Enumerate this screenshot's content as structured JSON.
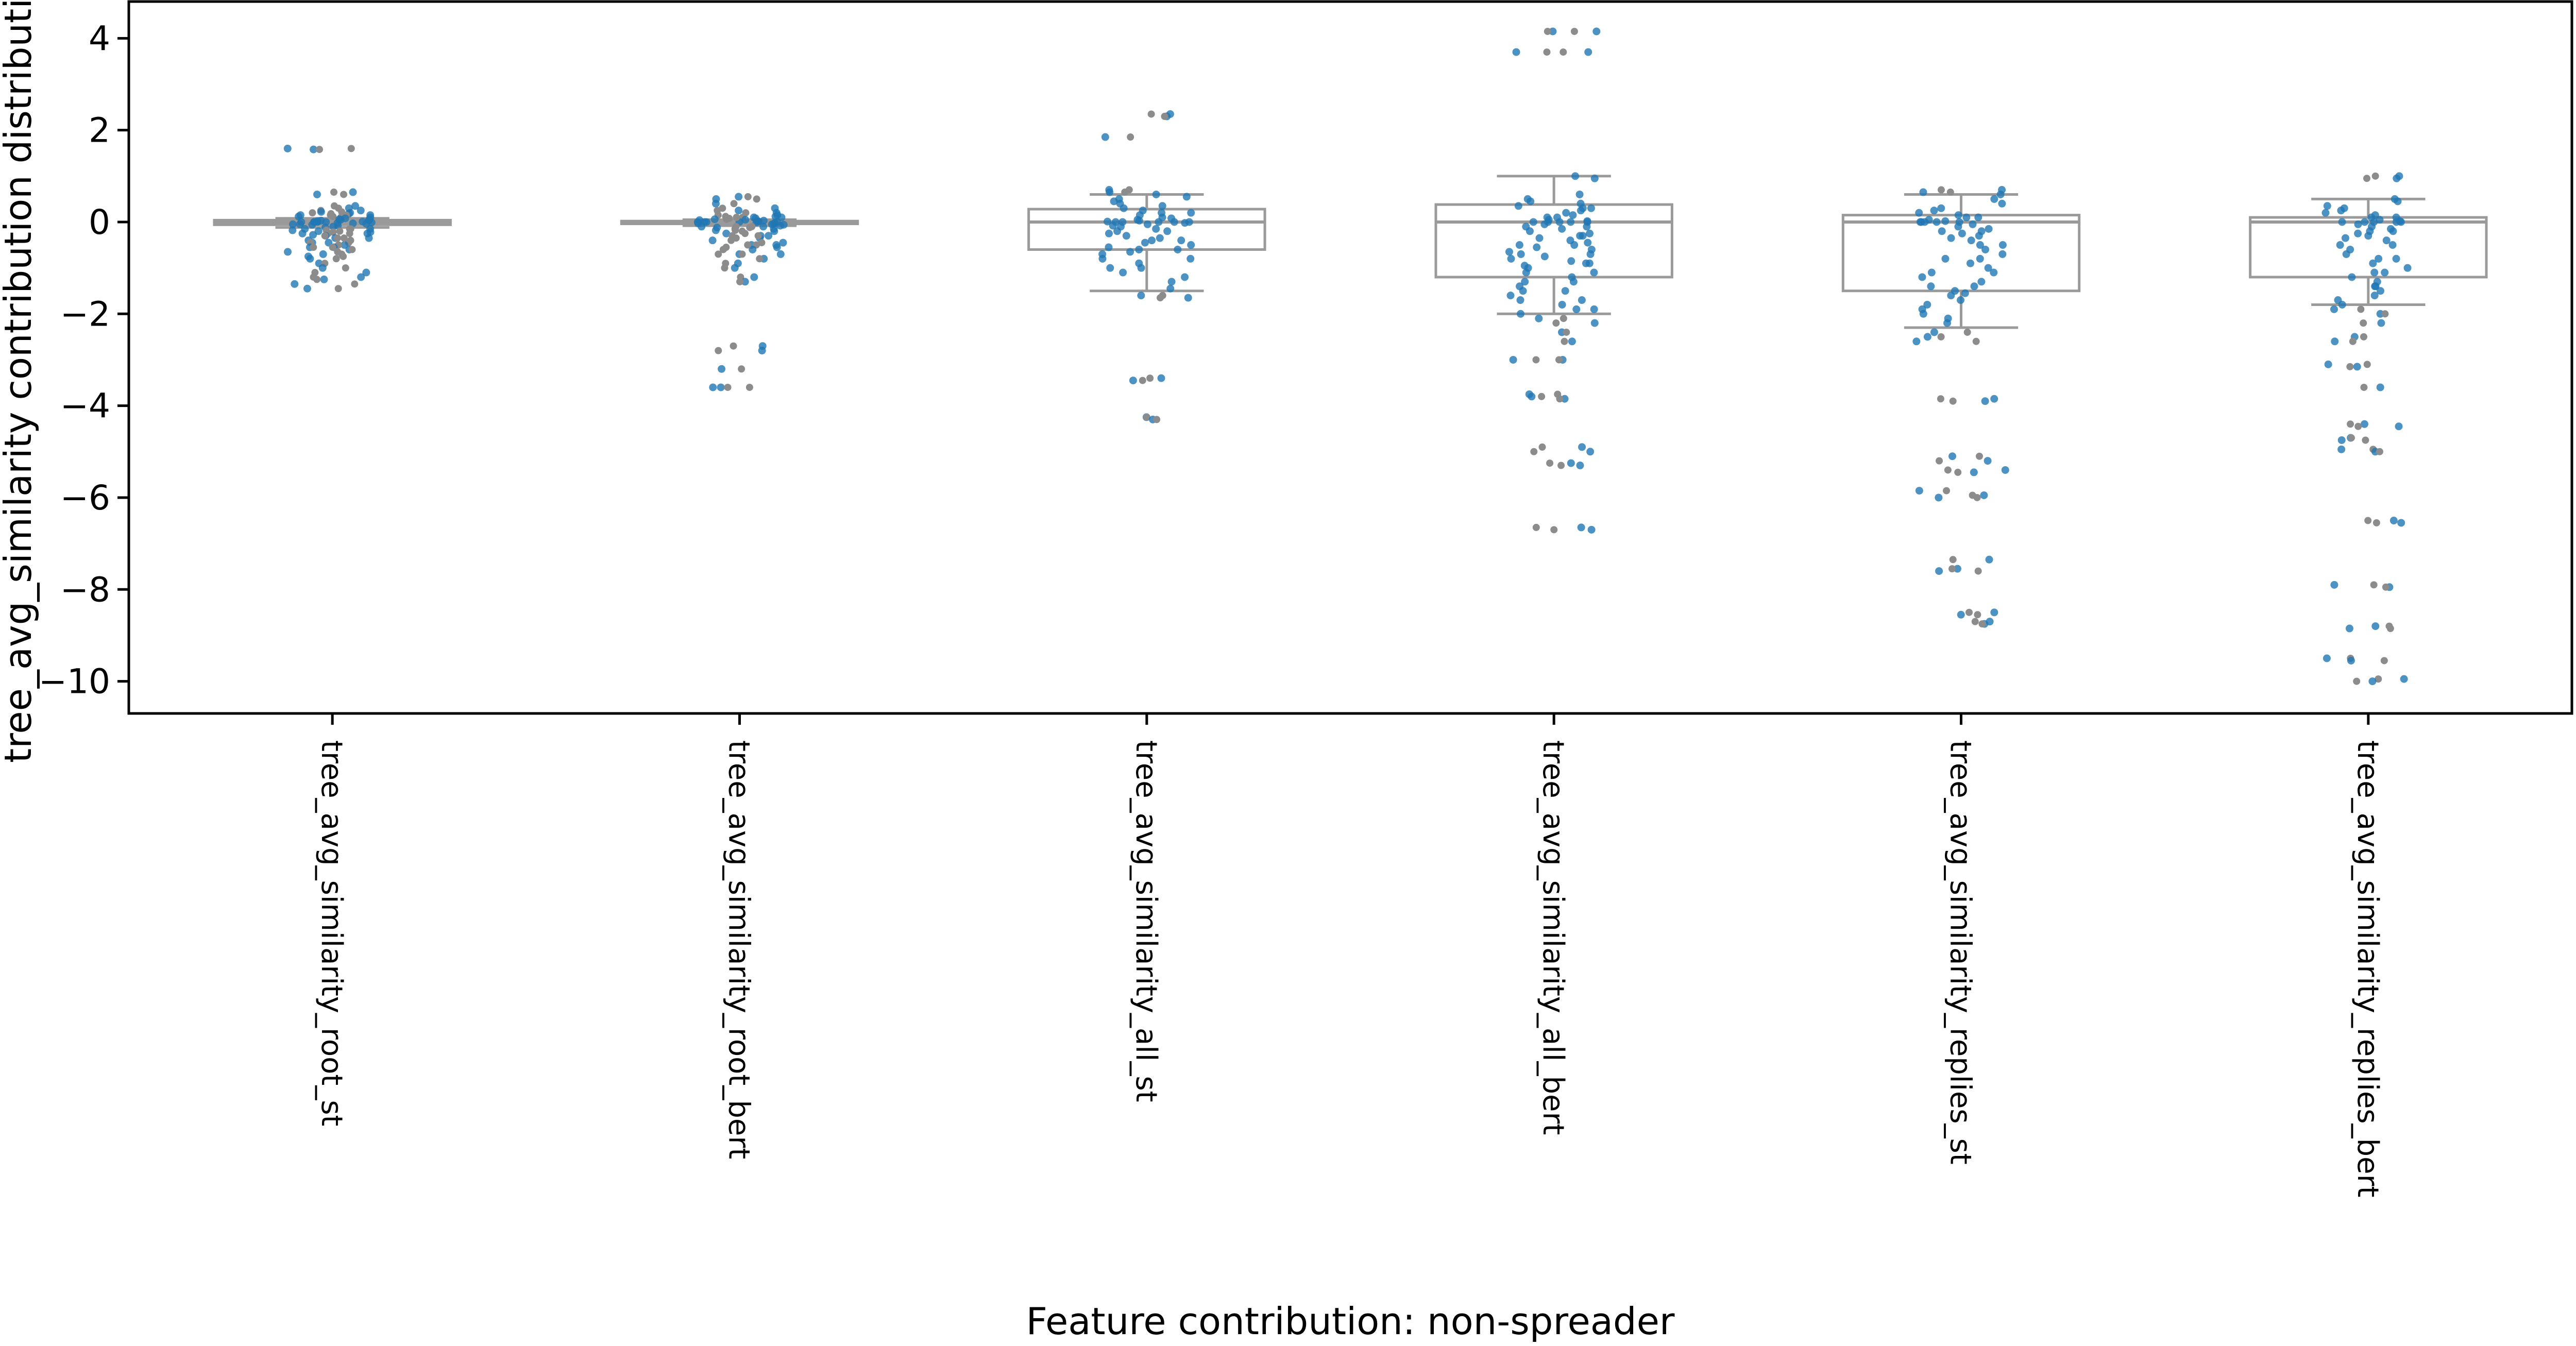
{
  "chart_data": {
    "type": "scatter",
    "title": "",
    "xlabel": "Feature contribution: non-spreader",
    "ylabel": "tree_avg_similarity contribution distribution",
    "ylim": [
      -10.7,
      4.8
    ],
    "yticks": [
      4,
      2,
      0,
      -2,
      -4,
      -6,
      -8,
      -10
    ],
    "yticklabels": [
      "4",
      "2",
      "0",
      "−2",
      "−4",
      "−6",
      "−8",
      "−10"
    ],
    "grid": false,
    "categories": [
      "tree_avg_similarity_root_st",
      "tree_avg_similarity_root_bert",
      "tree_avg_similarity_all_st",
      "tree_avg_similarity_all_bert",
      "tree_avg_similarity_replies_st",
      "tree_avg_similarity_replies_bert"
    ],
    "point_color": "#1f77b4",
    "outlier_color": "#8c8c8c",
    "box_color": "#9a9a9a",
    "box_summary": [
      {
        "q1": -0.06,
        "median": 0.0,
        "q3": 0.04,
        "whisker_low": -0.12,
        "whisker_high": 0.08
      },
      {
        "q1": -0.04,
        "median": 0.0,
        "q3": 0.02,
        "whisker_low": -0.08,
        "whisker_high": 0.05
      },
      {
        "q1": -0.6,
        "median": 0.0,
        "q3": 0.28,
        "whisker_low": -1.5,
        "whisker_high": 0.6
      },
      {
        "q1": -1.2,
        "median": 0.0,
        "q3": 0.38,
        "whisker_low": -2.0,
        "whisker_high": 1.0
      },
      {
        "q1": -1.5,
        "median": 0.0,
        "q3": 0.15,
        "whisker_low": -2.3,
        "whisker_high": 0.6
      },
      {
        "q1": -1.2,
        "median": 0.0,
        "q3": 0.1,
        "whisker_low": -1.8,
        "whisker_high": 0.5
      }
    ],
    "series": [
      {
        "values": [
          1.6,
          1.58,
          0.65,
          0.6,
          0.35,
          0.3,
          0.25,
          0.22,
          0.2,
          0.18,
          0.15,
          0.12,
          0.1,
          0.08,
          0.06,
          0.05,
          0.04,
          0.03,
          0.02,
          0.01,
          0.0,
          0.0,
          0.0,
          0.0,
          0.0,
          -0.01,
          -0.02,
          -0.03,
          -0.04,
          -0.05,
          -0.06,
          -0.08,
          -0.1,
          -0.12,
          -0.15,
          -0.18,
          -0.2,
          -0.22,
          -0.25,
          -0.28,
          -0.3,
          -0.35,
          -0.4,
          -0.45,
          -0.5,
          -0.55,
          -0.6,
          -0.7,
          -0.8,
          -0.9,
          -1.0,
          -1.1,
          -1.2,
          -1.25,
          -1.35,
          -1.45,
          0.15,
          0.05,
          -0.05,
          -0.15,
          -0.25,
          -0.35,
          -0.45,
          -0.55,
          -0.65,
          -0.75
        ]
      },
      {
        "values": [
          0.55,
          0.5,
          0.4,
          0.3,
          0.25,
          0.2,
          0.15,
          0.12,
          0.1,
          0.08,
          0.06,
          0.05,
          0.04,
          0.03,
          0.02,
          0.01,
          0.0,
          0.0,
          0.0,
          0.0,
          0.0,
          -0.01,
          -0.02,
          -0.03,
          -0.04,
          -0.05,
          -0.06,
          -0.08,
          -0.1,
          -0.12,
          -0.15,
          -0.18,
          -0.2,
          -0.25,
          -0.3,
          -0.35,
          -0.4,
          -0.45,
          -0.5,
          -0.55,
          -0.6,
          -0.7,
          -0.8,
          -0.9,
          -1.0,
          -1.2,
          -1.3,
          -2.7,
          -2.8,
          -3.2,
          -3.6,
          -3.6,
          0.1,
          -0.1,
          -0.3,
          -0.5,
          -0.7
        ]
      },
      {
        "values": [
          2.35,
          2.3,
          1.85,
          0.7,
          0.65,
          0.6,
          0.55,
          0.5,
          0.45,
          0.4,
          0.35,
          0.3,
          0.25,
          0.2,
          0.15,
          0.1,
          0.08,
          0.05,
          0.03,
          0.01,
          0.0,
          0.0,
          0.0,
          0.0,
          -0.02,
          -0.05,
          -0.08,
          -0.1,
          -0.15,
          -0.2,
          -0.25,
          -0.3,
          -0.35,
          -0.4,
          -0.45,
          -0.5,
          -0.55,
          -0.6,
          -0.65,
          -0.7,
          -0.8,
          -0.9,
          -1.0,
          -1.1,
          -1.2,
          -1.3,
          -1.45,
          -1.6,
          -1.65,
          -3.4,
          -3.45,
          -4.25,
          -4.3,
          0.2,
          0.0,
          -0.2,
          -0.4,
          -0.6,
          -0.8,
          -1.0
        ]
      },
      {
        "values": [
          4.15,
          4.15,
          3.7,
          3.7,
          1.0,
          0.95,
          0.6,
          0.5,
          0.45,
          0.4,
          0.35,
          0.3,
          0.25,
          0.2,
          0.15,
          0.1,
          0.05,
          0.02,
          0.0,
          0.0,
          0.0,
          0.0,
          0.0,
          -0.05,
          -0.1,
          -0.15,
          -0.2,
          -0.25,
          -0.3,
          -0.35,
          -0.4,
          -0.45,
          -0.5,
          -0.55,
          -0.6,
          -0.65,
          -0.7,
          -0.75,
          -0.8,
          -0.85,
          -0.9,
          -0.95,
          -1.0,
          -1.1,
          -1.2,
          -1.3,
          -1.4,
          -1.5,
          -1.6,
          -1.7,
          -1.8,
          -1.9,
          -2.0,
          -2.1,
          -2.2,
          -2.4,
          -2.6,
          -3.0,
          -3.0,
          -3.75,
          -3.8,
          -3.85,
          -4.9,
          -5.0,
          -5.25,
          -5.3,
          -6.65,
          -6.7,
          0.3,
          0.1,
          -0.1,
          -0.3,
          -0.5,
          -0.7,
          -0.9,
          -1.1,
          -1.3,
          -1.5,
          -1.7,
          -1.9
        ]
      },
      {
        "values": [
          0.7,
          0.65,
          0.6,
          0.5,
          0.4,
          0.3,
          0.25,
          0.2,
          0.15,
          0.1,
          0.05,
          0.02,
          0.0,
          0.0,
          0.0,
          0.0,
          0.0,
          -0.05,
          -0.1,
          -0.15,
          -0.2,
          -0.25,
          -0.3,
          -0.35,
          -0.4,
          -0.5,
          -0.6,
          -0.7,
          -0.8,
          -0.9,
          -1.0,
          -1.1,
          -1.2,
          -1.3,
          -1.4,
          -1.5,
          -1.55,
          -1.6,
          -1.7,
          -1.8,
          -1.9,
          -2.0,
          -2.1,
          -2.2,
          -2.4,
          -2.5,
          -2.6,
          -3.85,
          -3.9,
          -5.1,
          -5.2,
          -5.4,
          -5.45,
          -5.85,
          -5.95,
          -6.0,
          -7.35,
          -7.55,
          -7.6,
          -8.5,
          -8.55,
          -8.7,
          -8.75,
          0.1,
          -0.2,
          -0.5,
          -0.8,
          -1.1,
          -1.4
        ]
      },
      {
        "values": [
          1.0,
          0.95,
          0.5,
          0.45,
          0.35,
          0.3,
          0.25,
          0.2,
          0.15,
          0.1,
          0.05,
          0.02,
          0.0,
          0.0,
          0.0,
          0.0,
          0.0,
          -0.05,
          -0.1,
          -0.15,
          -0.2,
          -0.25,
          -0.3,
          -0.35,
          -0.4,
          -0.5,
          -0.6,
          -0.7,
          -0.8,
          -0.9,
          -1.0,
          -1.1,
          -1.2,
          -1.3,
          -1.4,
          -1.5,
          -1.6,
          -1.7,
          -1.8,
          -1.9,
          -2.0,
          -2.2,
          -2.5,
          -2.6,
          -3.1,
          -3.15,
          -3.6,
          -4.4,
          -4.45,
          -4.7,
          -4.75,
          -4.95,
          -5.0,
          -6.5,
          -6.55,
          -7.9,
          -7.95,
          -8.8,
          -8.85,
          -9.5,
          -9.55,
          -9.95,
          -10.0,
          0.1,
          -0.2,
          -0.5,
          -0.8,
          -1.1,
          -1.4
        ]
      }
    ]
  }
}
